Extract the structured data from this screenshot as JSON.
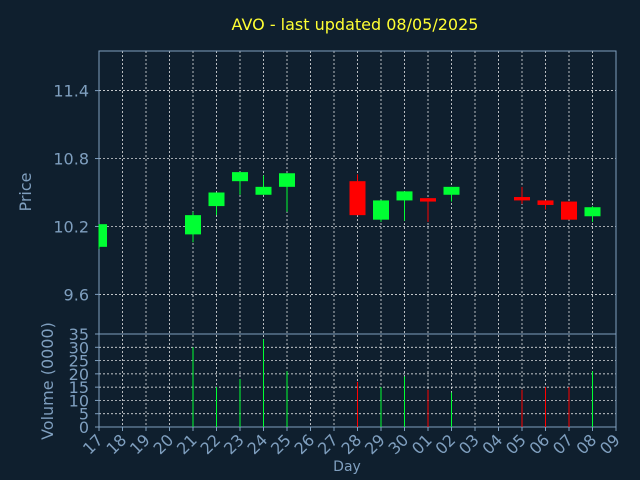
{
  "chart_data": {
    "type": "candlestick",
    "title": "AVO - last updated 08/05/2025",
    "xlabel": "Day",
    "price_panel": {
      "ylabel": "Price",
      "ylim": [
        9.25,
        11.75
      ],
      "yticks": [
        "9.6",
        "10.2",
        "10.8",
        "11.4"
      ],
      "grid": true
    },
    "volume_panel": {
      "ylabel": "Volume (0000)",
      "ylim": [
        0,
        35
      ],
      "yticks": [
        "0",
        "5",
        "10",
        "15",
        "20",
        "25",
        "30",
        "35"
      ],
      "grid": true
    },
    "x_ticks": [
      "17",
      "18",
      "19",
      "20",
      "21",
      "22",
      "23",
      "24",
      "25",
      "26",
      "27",
      "28",
      "29",
      "30",
      "01",
      "02",
      "03",
      "04",
      "05",
      "06",
      "07",
      "08",
      "09"
    ],
    "candles": [
      {
        "day": "17",
        "open": 10.02,
        "high": 10.22,
        "low": 10.0,
        "close": 10.22,
        "volume": 0
      },
      {
        "day": "21",
        "open": 10.13,
        "high": 10.33,
        "low": 10.06,
        "close": 10.3,
        "volume": 30
      },
      {
        "day": "22",
        "open": 10.38,
        "high": 10.5,
        "low": 10.3,
        "close": 10.5,
        "volume": 15
      },
      {
        "day": "23",
        "open": 10.6,
        "high": 10.68,
        "low": 10.48,
        "close": 10.68,
        "volume": 18
      },
      {
        "day": "24",
        "open": 10.48,
        "high": 10.65,
        "low": 10.48,
        "close": 10.55,
        "volume": 33
      },
      {
        "day": "25",
        "open": 10.55,
        "high": 10.67,
        "low": 10.33,
        "close": 10.67,
        "volume": 21
      },
      {
        "day": "28",
        "open": 10.6,
        "high": 10.66,
        "low": 10.3,
        "close": 10.3,
        "volume": 17
      },
      {
        "day": "29",
        "open": 10.26,
        "high": 10.43,
        "low": 10.24,
        "close": 10.43,
        "volume": 15
      },
      {
        "day": "30",
        "open": 10.43,
        "high": 10.51,
        "low": 10.25,
        "close": 10.51,
        "volume": 19
      },
      {
        "day": "01",
        "open": 10.45,
        "high": 10.45,
        "low": 10.24,
        "close": 10.42,
        "volume": 14
      },
      {
        "day": "02",
        "open": 10.48,
        "high": 10.55,
        "low": 10.42,
        "close": 10.55,
        "volume": 13
      },
      {
        "day": "05",
        "open": 10.46,
        "high": 10.55,
        "low": 10.4,
        "close": 10.43,
        "volume": 14
      },
      {
        "day": "06",
        "open": 10.43,
        "high": 10.43,
        "low": 10.35,
        "close": 10.39,
        "volume": 15
      },
      {
        "day": "07",
        "open": 10.42,
        "high": 10.42,
        "low": 10.26,
        "close": 10.26,
        "volume": 15
      },
      {
        "day": "08",
        "open": 10.29,
        "high": 10.38,
        "low": 10.24,
        "close": 10.37,
        "volume": 21
      }
    ],
    "colors": {
      "background": "#0f1f2e",
      "title": "#ffff33",
      "axis_text": "#7f9fbf",
      "grid": "#ffffff",
      "up": "#00ff33",
      "down": "#ff0000",
      "axes_frame": "#7f9fbf"
    }
  }
}
